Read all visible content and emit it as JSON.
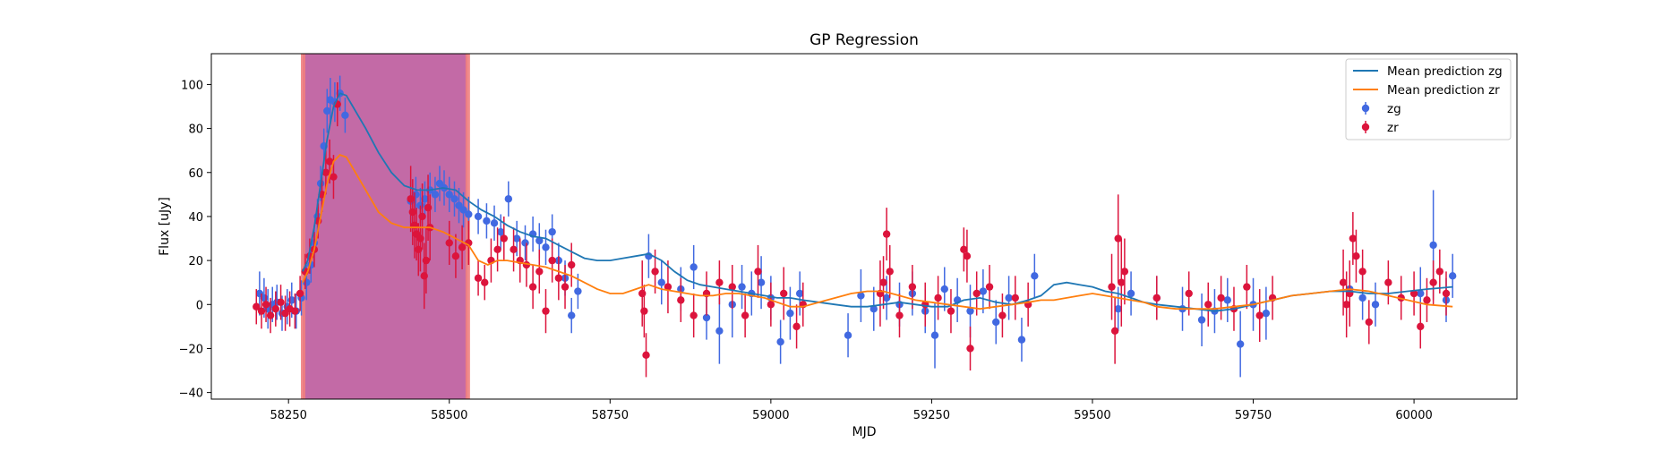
{
  "chart_data": {
    "type": "scatter",
    "title": "GP Regression",
    "xlabel": "MJD",
    "ylabel": "Flux [uJy]",
    "xlim": [
      58130,
      60160
    ],
    "ylim": [
      -43,
      114
    ],
    "xticks": [
      58250,
      58500,
      58750,
      59000,
      59250,
      59500,
      59750,
      60000
    ],
    "yticks": [
      -40,
      -20,
      0,
      20,
      40,
      60,
      80,
      100
    ],
    "grid": false,
    "legend_position": "top-right",
    "legend": [
      "Mean prediction zg",
      "Mean prediction zr",
      "zg",
      "zr"
    ],
    "highlight_region": {
      "x": [
        58272,
        58528
      ],
      "fill": "#c36aa6",
      "edge": "#f08080"
    },
    "lines": [
      {
        "name": "Mean prediction zg",
        "color": "#1f77b4",
        "x": [
          58272,
          58280,
          58290,
          58300,
          58310,
          58320,
          58330,
          58340,
          58350,
          58370,
          58390,
          58410,
          58430,
          58450,
          58470,
          58490,
          58510,
          58530,
          58550,
          58570,
          58590,
          58610,
          58630,
          58650,
          58670,
          58690,
          58710,
          58730,
          58750,
          58770,
          58790,
          58810,
          58830,
          58850,
          58870,
          58890,
          58910,
          58930,
          58950,
          58970,
          58990,
          59010,
          59030,
          59050,
          59075,
          59100,
          59125,
          59150,
          59175,
          59200,
          59225,
          59250,
          59275,
          59300,
          59325,
          59350,
          59375,
          59400,
          59420,
          59440,
          59460,
          59480,
          59500,
          59520,
          59540,
          59560,
          59580,
          59600,
          59630,
          59660,
          59690,
          59720,
          59750,
          59780,
          59810,
          59840,
          59870,
          59900,
          59930,
          59960,
          59990,
          60020,
          60060
        ],
        "y": [
          15,
          20,
          35,
          55,
          75,
          90,
          96,
          95,
          90,
          80,
          69,
          60,
          54,
          52,
          52,
          53,
          52,
          47,
          43,
          40,
          36,
          33,
          31,
          30,
          27,
          24,
          21,
          20,
          20,
          21,
          22,
          23,
          20,
          15,
          11,
          9,
          8,
          7,
          6,
          5,
          4,
          3,
          3,
          2,
          1,
          0,
          -1,
          -1,
          0,
          1,
          0,
          -1,
          -1,
          2,
          3,
          1,
          0,
          2,
          4,
          9,
          10,
          9,
          8,
          6,
          5,
          3,
          1,
          0,
          -1,
          -2,
          -3,
          -2,
          0,
          2,
          4,
          5,
          6,
          6,
          5,
          5,
          6,
          7,
          8
        ]
      },
      {
        "name": "Mean prediction zr",
        "color": "#ff7f0e",
        "x": [
          58272,
          58280,
          58290,
          58300,
          58310,
          58320,
          58330,
          58340,
          58350,
          58370,
          58390,
          58410,
          58430,
          58450,
          58470,
          58490,
          58510,
          58530,
          58545,
          58560,
          58575,
          58590,
          58610,
          58630,
          58650,
          58670,
          58690,
          58710,
          58730,
          58750,
          58770,
          58790,
          58810,
          58830,
          58850,
          58870,
          58890,
          58910,
          58930,
          58950,
          58970,
          58990,
          59010,
          59030,
          59050,
          59075,
          59100,
          59125,
          59150,
          59175,
          59200,
          59225,
          59250,
          59275,
          59300,
          59325,
          59350,
          59375,
          59400,
          59420,
          59440,
          59460,
          59480,
          59500,
          59520,
          59540,
          59560,
          59580,
          59600,
          59630,
          59660,
          59690,
          59720,
          59750,
          59780,
          59810,
          59840,
          59870,
          59900,
          59930,
          59960,
          59990,
          60020,
          60060
        ],
        "y": [
          10,
          15,
          25,
          40,
          55,
          65,
          68,
          67,
          62,
          52,
          42,
          37,
          35,
          35,
          35,
          33,
          30,
          27,
          20,
          18,
          20,
          20,
          19,
          18,
          17,
          15,
          13,
          10,
          7,
          5,
          5,
          7,
          9,
          7,
          6,
          5,
          4,
          4,
          5,
          5,
          4,
          3,
          1,
          -1,
          -1,
          1,
          3,
          5,
          6,
          6,
          4,
          2,
          1,
          0,
          -1,
          -2,
          -1,
          0,
          1,
          2,
          2,
          3,
          4,
          5,
          4,
          3,
          2,
          1,
          -1,
          -2,
          -2,
          -2,
          -1,
          0,
          2,
          4,
          5,
          6,
          7,
          6,
          4,
          2,
          0,
          -1
        ]
      }
    ],
    "series": [
      {
        "name": "zg",
        "color": "#4169e1",
        "x": [
          58205,
          58212,
          58218,
          58225,
          58232,
          58240,
          58248,
          58255,
          58262,
          58270,
          58278,
          58285,
          58290,
          58295,
          58300,
          58305,
          58310,
          58315,
          58322,
          58330,
          58338,
          58440,
          58448,
          58455,
          58462,
          58470,
          58478,
          58485,
          58492,
          58500,
          58508,
          58515,
          58522,
          58530,
          58545,
          58558,
          58570,
          58580,
          58592,
          58605,
          58618,
          58630,
          58640,
          58650,
          58660,
          58670,
          58680,
          58690,
          58700,
          58810,
          58830,
          58860,
          58880,
          58900,
          58920,
          58940,
          58955,
          58970,
          58985,
          59000,
          59015,
          59030,
          59045,
          59120,
          59140,
          59160,
          59180,
          59200,
          59220,
          59240,
          59255,
          59270,
          59290,
          59310,
          59330,
          59350,
          59370,
          59390,
          59410,
          59540,
          59560,
          59600,
          59640,
          59670,
          59690,
          59710,
          59730,
          59750,
          59770,
          59900,
          59920,
          59940,
          60010,
          60030,
          60050,
          60060
        ],
        "y": [
          5,
          3,
          -2,
          0,
          1,
          -4,
          -1,
          2,
          -3,
          3,
          10,
          18,
          28,
          40,
          55,
          72,
          88,
          93,
          92,
          96,
          86,
          47,
          50,
          45,
          48,
          52,
          50,
          55,
          53,
          50,
          48,
          45,
          43,
          41,
          40,
          38,
          37,
          33,
          48,
          30,
          28,
          32,
          29,
          26,
          33,
          20,
          12,
          -5,
          6,
          22,
          10,
          7,
          17,
          -6,
          -12,
          0,
          8,
          5,
          10,
          3,
          -17,
          -4,
          5,
          -14,
          4,
          -2,
          3,
          0,
          5,
          -3,
          -14,
          7,
          2,
          -3,
          6,
          -8,
          3,
          -16,
          13,
          -2,
          5,
          3,
          -2,
          -7,
          -3,
          2,
          -18,
          0,
          -4,
          7,
          3,
          0,
          5,
          27,
          2,
          13
        ],
        "err": [
          10,
          9,
          9,
          8,
          8,
          8,
          8,
          8,
          8,
          8,
          8,
          8,
          8,
          8,
          8,
          8,
          10,
          10,
          9,
          8,
          8,
          10,
          8,
          8,
          8,
          8,
          8,
          8,
          8,
          8,
          8,
          8,
          8,
          8,
          8,
          8,
          8,
          8,
          8,
          8,
          8,
          8,
          8,
          8,
          8,
          8,
          8,
          8,
          8,
          10,
          10,
          10,
          10,
          10,
          15,
          15,
          10,
          10,
          12,
          10,
          10,
          12,
          10,
          10,
          12,
          10,
          10,
          10,
          10,
          10,
          15,
          10,
          10,
          12,
          10,
          10,
          10,
          10,
          10,
          10,
          10,
          10,
          10,
          12,
          10,
          10,
          15,
          12,
          12,
          10,
          10,
          10,
          12,
          25,
          10,
          10
        ]
      },
      {
        "name": "zr",
        "color": "#dc143c",
        "x": [
          58200,
          58208,
          58215,
          58222,
          58230,
          58238,
          58245,
          58252,
          58260,
          58268,
          58276,
          58283,
          58290,
          58296,
          58302,
          58308,
          58314,
          58320,
          58326,
          58440,
          58443,
          58446,
          58449,
          58452,
          58455,
          58458,
          58461,
          58464,
          58467,
          58470,
          58500,
          58510,
          58520,
          58530,
          58545,
          58555,
          58565,
          58575,
          58585,
          58600,
          58610,
          58620,
          58630,
          58640,
          58650,
          58660,
          58670,
          58680,
          58690,
          58800,
          58803,
          58806,
          58820,
          58840,
          58860,
          58880,
          58900,
          58920,
          58940,
          58960,
          58980,
          59000,
          59020,
          59040,
          59050,
          59170,
          59175,
          59180,
          59185,
          59200,
          59220,
          59240,
          59260,
          59280,
          59300,
          59305,
          59310,
          59320,
          59340,
          59360,
          59380,
          59400,
          59530,
          59535,
          59540,
          59545,
          59550,
          59600,
          59650,
          59680,
          59700,
          59720,
          59740,
          59760,
          59780,
          59890,
          59895,
          59900,
          59905,
          59910,
          59920,
          59930,
          59960,
          59980,
          60000,
          60010,
          60020,
          60030,
          60040,
          60050
        ],
        "y": [
          -1,
          -3,
          0,
          -5,
          -2,
          1,
          -4,
          -2,
          -3,
          5,
          15,
          22,
          25,
          38,
          50,
          60,
          65,
          58,
          91,
          48,
          42,
          36,
          32,
          25,
          30,
          40,
          13,
          20,
          44,
          35,
          28,
          22,
          26,
          28,
          12,
          10,
          20,
          25,
          30,
          25,
          20,
          18,
          8,
          15,
          -3,
          20,
          12,
          8,
          18,
          5,
          -3,
          -23,
          15,
          8,
          2,
          -5,
          5,
          10,
          8,
          -5,
          15,
          0,
          5,
          -10,
          0,
          5,
          10,
          32,
          15,
          -5,
          8,
          0,
          3,
          -3,
          25,
          22,
          -20,
          5,
          8,
          -5,
          3,
          0,
          8,
          -12,
          30,
          10,
          15,
          3,
          5,
          0,
          3,
          -2,
          8,
          -5,
          3,
          10,
          0,
          5,
          30,
          22,
          15,
          -8,
          10,
          3,
          5,
          -10,
          2,
          10,
          15,
          5
        ],
        "err": [
          8,
          8,
          8,
          8,
          8,
          8,
          8,
          8,
          8,
          8,
          8,
          8,
          8,
          8,
          8,
          10,
          10,
          10,
          10,
          15,
          15,
          15,
          12,
          12,
          15,
          15,
          15,
          15,
          15,
          15,
          10,
          10,
          10,
          10,
          8,
          8,
          10,
          10,
          10,
          10,
          10,
          10,
          10,
          10,
          10,
          10,
          10,
          10,
          10,
          15,
          12,
          10,
          10,
          12,
          10,
          10,
          10,
          10,
          10,
          10,
          12,
          10,
          12,
          10,
          10,
          15,
          12,
          12,
          12,
          10,
          10,
          10,
          10,
          10,
          10,
          12,
          10,
          10,
          10,
          10,
          10,
          10,
          15,
          15,
          20,
          20,
          15,
          10,
          10,
          10,
          10,
          10,
          10,
          12,
          10,
          15,
          15,
          15,
          12,
          12,
          10,
          10,
          10,
          10,
          10,
          10,
          10,
          10,
          10,
          10
        ]
      }
    ]
  }
}
